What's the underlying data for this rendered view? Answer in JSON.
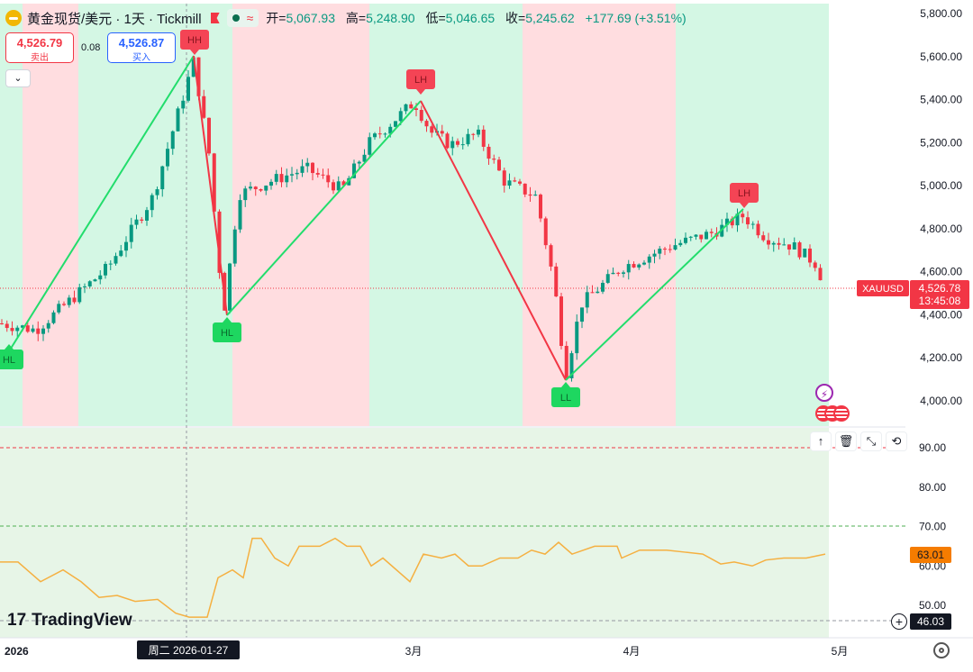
{
  "header": {
    "symbol_title": "黄金现货/美元 · 1天 · Tickmill",
    "approx_icon": "≈",
    "ohlc": {
      "open_label": "开=",
      "open": "5,067.93",
      "high_label": "高=",
      "high": "5,248.90",
      "low_label": "低=",
      "low": "5,046.65",
      "close_label": "收=",
      "close": "5,245.62",
      "change": "+177.69 (+3.51%)"
    }
  },
  "trade": {
    "sell_price": "4,526.79",
    "sell_label": "卖出",
    "spread": "0.08",
    "buy_price": "4,526.87",
    "buy_label": "买入"
  },
  "price_axis": {
    "ticks": [
      "5,800.00",
      "5,600.00",
      "5,400.00",
      "5,200.00",
      "5,000.00",
      "4,800.00",
      "4,600.00",
      "4,400.00",
      "4,200.00",
      "4,000.00"
    ],
    "current_symbol": "XAUUSD",
    "current_price": "4,526.78",
    "countdown": "13:45:08"
  },
  "indicator_axis": {
    "ticks": [
      "90.00",
      "80.00",
      "70.00",
      "60.00",
      "50.00"
    ],
    "current_value": "63.01",
    "cursor_value": "46.03"
  },
  "time_axis": {
    "ticks": [
      "2026",
      "3月",
      "4月",
      "5月"
    ],
    "crosshair_label": "周二  2026-01-27"
  },
  "zones": [
    "bull",
    "bear",
    "bull",
    "bear",
    "bull",
    "bear",
    "bull"
  ],
  "structure_labels": [
    "HL",
    "HH",
    "HL",
    "LH",
    "LL",
    "LH"
  ],
  "branding": {
    "logo_text": "TradingView",
    "logo_mark": "17"
  },
  "toolbar_icons": [
    "arrow-up-icon",
    "trash-icon",
    "collapse-icon",
    "refresh-icon"
  ],
  "colors": {
    "up": "#089981",
    "down": "#f23645",
    "bull_zone": "#d4f7e4",
    "bear_zone": "#ffdde0",
    "rsi": "#f5b041",
    "zigzag_up": "#22dd6c",
    "zigzag_down": "#f23645"
  }
}
